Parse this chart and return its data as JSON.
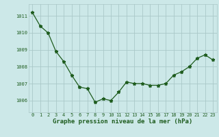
{
  "x": [
    0,
    1,
    2,
    3,
    4,
    5,
    6,
    7,
    8,
    9,
    10,
    11,
    12,
    13,
    14,
    15,
    16,
    17,
    18,
    19,
    20,
    21,
    22,
    23
  ],
  "y": [
    1011.2,
    1010.4,
    1010.0,
    1008.9,
    1008.3,
    1007.5,
    1006.8,
    1006.7,
    1005.9,
    1006.1,
    1006.0,
    1006.5,
    1007.1,
    1007.0,
    1007.0,
    1006.9,
    1006.9,
    1007.0,
    1007.5,
    1007.7,
    1008.0,
    1008.5,
    1008.7,
    1008.4
  ],
  "line_color": "#1e5c1e",
  "marker": "*",
  "bg_color": "#cce8e8",
  "grid_color": "#aac8c8",
  "xlabel": "Graphe pression niveau de la mer (hPa)",
  "xlabel_color": "#1e5c1e",
  "ylabel_ticks": [
    1006,
    1007,
    1008,
    1009,
    1010,
    1011
  ],
  "ylim": [
    1005.3,
    1011.7
  ],
  "xlim": [
    -0.5,
    23.5
  ],
  "tick_color": "#1e5c1e",
  "label_fontsize": 6.5,
  "tick_fontsize": 5.0
}
